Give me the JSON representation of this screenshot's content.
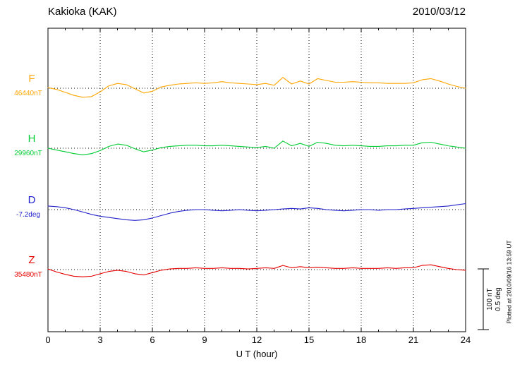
{
  "header": {
    "title": "Kakioka (KAK)",
    "date": "2010/03/12"
  },
  "axis": {
    "xlabel": "U T (hour)",
    "x_ticks": [
      "0",
      "3",
      "6",
      "9",
      "12",
      "15",
      "18",
      "21",
      "24"
    ]
  },
  "scale_bar": {
    "nt_label": "100 nT",
    "deg_label": "0.5 deg"
  },
  "footer_note": "Plotted at 2010/09/16 13:59 UT",
  "chart_data": {
    "type": "line",
    "title": "Kakioka (KAK)",
    "date": "2010/03/12",
    "xlabel": "U T (hour)",
    "x_range": [
      0,
      24
    ],
    "x_ticks": [
      0,
      3,
      6,
      9,
      12,
      15,
      18,
      21,
      24
    ],
    "grid": "dotted-vertical-every-3h, dotted-baseline-per-channel",
    "scale_bar": {
      "nt": "100 nT",
      "deg": "0.5 deg"
    },
    "note": "values are deviations from each channel baseline",
    "series": [
      {
        "name": "F",
        "baseline_label": "46440nT",
        "baseline_value": 46440,
        "unit": "nT",
        "color": "#FFA500",
        "step_hours": 0.5,
        "scale_units_per_bar": 100,
        "values": [
          1,
          -2,
          -7,
          -12,
          -15,
          -14,
          -6,
          4,
          8,
          6,
          -1,
          -8,
          -5,
          2,
          5,
          7,
          8,
          9,
          8,
          9,
          11,
          9,
          8,
          7,
          6,
          8,
          5,
          18,
          7,
          12,
          7,
          16,
          13,
          10,
          10,
          11,
          10,
          9,
          9,
          8,
          8,
          8,
          9,
          14,
          16,
          12,
          7,
          3,
          0
        ]
      },
      {
        "name": "H",
        "baseline_label": "29960nT",
        "baseline_value": 29960,
        "unit": "nT",
        "color": "#00CC33",
        "step_hours": 0.5,
        "scale_units_per_bar": 100,
        "values": [
          0,
          -3,
          -6,
          -9,
          -11,
          -9,
          -4,
          3,
          7,
          5,
          -1,
          -6,
          -3,
          1,
          3,
          4,
          5,
          5,
          4,
          4,
          5,
          4,
          3,
          2,
          1,
          3,
          0,
          12,
          4,
          8,
          3,
          10,
          8,
          5,
          4,
          5,
          4,
          3,
          3,
          4,
          4,
          5,
          5,
          9,
          10,
          7,
          4,
          2,
          0
        ]
      },
      {
        "name": "D",
        "baseline_label": "-7.2deg",
        "baseline_value": -7.2,
        "unit": "deg",
        "color": "#2222CC",
        "step_hours": 0.5,
        "scale_units_per_bar": 0.5,
        "values": [
          0.03,
          0.025,
          0.015,
          0,
          -0.02,
          -0.04,
          -0.055,
          -0.065,
          -0.075,
          -0.085,
          -0.09,
          -0.085,
          -0.07,
          -0.05,
          -0.03,
          -0.015,
          -0.005,
          0,
          0,
          -0.005,
          -0.01,
          -0.005,
          0,
          -0.005,
          -0.01,
          -0.005,
          0,
          0.005,
          0.01,
          0.005,
          0.015,
          0.01,
          0,
          -0.005,
          -0.01,
          -0.005,
          0,
          0,
          -0.005,
          0,
          0,
          0.005,
          0.01,
          0.015,
          0.02,
          0.025,
          0.03,
          0.04,
          0.05
        ]
      },
      {
        "name": "Z",
        "baseline_label": "35480nT",
        "baseline_value": 35480,
        "unit": "nT",
        "color": "#E60000",
        "step_hours": 0.5,
        "scale_units_per_bar": 100,
        "values": [
          1,
          -4,
          -8,
          -11,
          -12,
          -11,
          -7,
          -3,
          -1,
          -3,
          -7,
          -9,
          -5,
          -1,
          1,
          2,
          2,
          3,
          2,
          2,
          3,
          2,
          2,
          1,
          2,
          3,
          2,
          7,
          3,
          5,
          3,
          4,
          3,
          2,
          2,
          3,
          2,
          2,
          2,
          3,
          2,
          3,
          3,
          7,
          8,
          5,
          2,
          0,
          -1
        ]
      }
    ]
  }
}
